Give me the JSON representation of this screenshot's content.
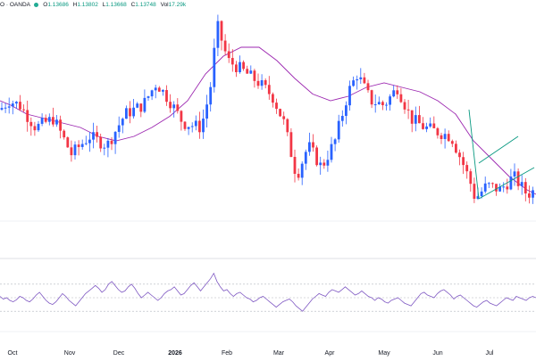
{
  "legend": {
    "pair": "O",
    "source": "OANDA",
    "separator": "·",
    "o_label": "O",
    "o_value": "1.13686",
    "h_label": "H",
    "h_value": "1.13802",
    "l_label": "L",
    "l_value": "1.13668",
    "c_label": "C",
    "c_value": "1.13748",
    "vol_label": "Vol",
    "vol_value": "17.29k"
  },
  "colors": {
    "up": "#2962ff",
    "down": "#f23645",
    "ma": "#9c27b0",
    "rsi": "#7e57c2",
    "channel": "#089981",
    "legend_dot": "#22ab94"
  },
  "chart_data": {
    "type": "candlestick",
    "price_range": [
      0,
      100
    ],
    "candles": [],
    "moving_average": [
      [
        0,
        62
      ],
      [
        12,
        60
      ],
      [
        30,
        56
      ],
      [
        50,
        54
      ],
      [
        70,
        52
      ],
      [
        90,
        50
      ],
      [
        110,
        46
      ],
      [
        130,
        44
      ],
      [
        150,
        46
      ],
      [
        170,
        50
      ],
      [
        190,
        55
      ],
      [
        210,
        62
      ],
      [
        230,
        74
      ],
      [
        250,
        82
      ],
      [
        270,
        86
      ],
      [
        290,
        86
      ],
      [
        310,
        80
      ],
      [
        330,
        72
      ],
      [
        350,
        65
      ],
      [
        370,
        62
      ],
      [
        390,
        64
      ],
      [
        410,
        68
      ],
      [
        430,
        70
      ],
      [
        450,
        68
      ],
      [
        470,
        66
      ],
      [
        490,
        62
      ],
      [
        510,
        56
      ],
      [
        530,
        44
      ],
      [
        550,
        36
      ],
      [
        570,
        28
      ],
      [
        590,
        22
      ],
      [
        600,
        20
      ]
    ],
    "channel": {
      "lower": [
        [
          536,
          18
        ],
        [
          598,
          32
        ]
      ],
      "upper": [
        [
          536,
          34
        ],
        [
          580,
          46
        ]
      ],
      "drop": [
        [
          525,
          58
        ],
        [
          536,
          18
        ]
      ]
    },
    "rsi": [
      52,
      48,
      50,
      46,
      44,
      47,
      52,
      50,
      46,
      44,
      48,
      54,
      58,
      52,
      46,
      42,
      40,
      44,
      50,
      56,
      52,
      46,
      42,
      38,
      44,
      50,
      56,
      60,
      64,
      68,
      64,
      58,
      62,
      70,
      74,
      68,
      62,
      58,
      60,
      66,
      70,
      64,
      56,
      50,
      54,
      58,
      54,
      50,
      46,
      50,
      56,
      60,
      62,
      66,
      60,
      54,
      56,
      62,
      68,
      72,
      66,
      60,
      66,
      72,
      78,
      86,
      74,
      66,
      60,
      62,
      56,
      52,
      56,
      58,
      54,
      50,
      48,
      44,
      46,
      50,
      52,
      48,
      44,
      40,
      36,
      40,
      44,
      46,
      48,
      44,
      38,
      34,
      30,
      36,
      42,
      48,
      52,
      56,
      54,
      52,
      58,
      62,
      60,
      58,
      62,
      66,
      62,
      58,
      54,
      56,
      60,
      56,
      52,
      50,
      46,
      50,
      48,
      44,
      42,
      46,
      48,
      50,
      46,
      42,
      40,
      38,
      44,
      50,
      56,
      58,
      54,
      52,
      50,
      56,
      60,
      62,
      58,
      54,
      48,
      52,
      54,
      50,
      46,
      42,
      38,
      36,
      40,
      44,
      46,
      42,
      40,
      38,
      42,
      46,
      50,
      48,
      46,
      52,
      50,
      48,
      46,
      50,
      52,
      50
    ],
    "rsi_levels": [
      70,
      50,
      30
    ],
    "x_tick_labels": [
      "Oct",
      "Nov",
      "Dec",
      "2026",
      "Feb",
      "Mar",
      "Apr",
      "May",
      "Jun",
      "Jul"
    ],
    "x_tick_bold": [
      false,
      false,
      false,
      true,
      false,
      false,
      false,
      false,
      false,
      false
    ]
  }
}
